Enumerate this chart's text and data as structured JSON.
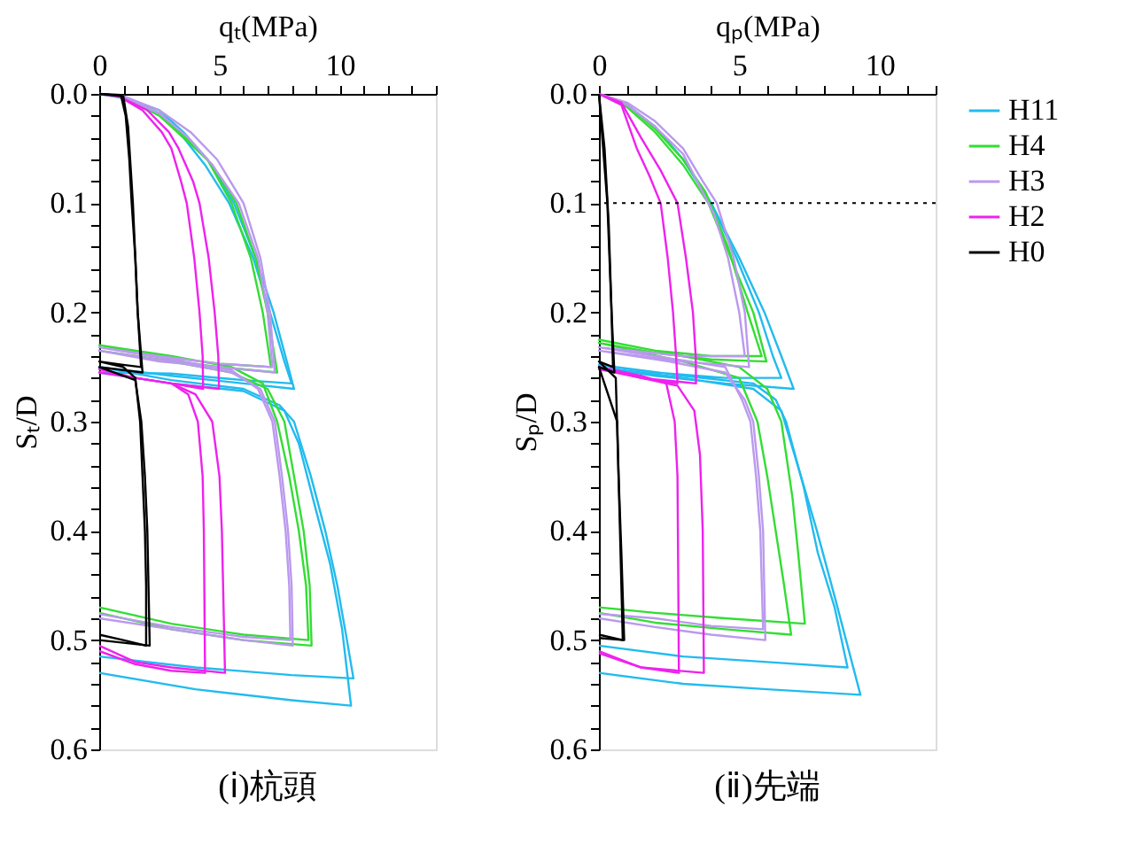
{
  "chart_data": [
    {
      "type": "line",
      "title": "(ⅰ)杭頭",
      "xlabel": "qₜ(MPa)",
      "ylabel": "Sₜ/D",
      "xlim": [
        0,
        14
      ],
      "ylim": [
        0.6,
        0
      ],
      "grid": false,
      "legend": false,
      "line_style": "solid",
      "marker": "none",
      "xticks": [
        0,
        {
          "value": 1,
          "label": null
        },
        {
          "value": 2,
          "label": null
        },
        {
          "value": 3,
          "label": null
        },
        {
          "value": 4,
          "label": null
        },
        5,
        {
          "value": 6,
          "label": null
        },
        {
          "value": 7,
          "label": null
        },
        {
          "value": 8,
          "label": null
        },
        {
          "value": 9,
          "label": null
        },
        10,
        {
          "value": 11,
          "label": null
        },
        {
          "value": 12,
          "label": null
        },
        {
          "value": 13,
          "label": null
        },
        {
          "value": 14,
          "label": null
        }
      ],
      "yticks": [
        {
          "value": 0,
          "label": "0.0"
        },
        {
          "value": 0.02,
          "label": null
        },
        {
          "value": 0.04,
          "label": null
        },
        {
          "value": 0.06,
          "label": null
        },
        {
          "value": 0.08,
          "label": null
        },
        0.1,
        {
          "value": 0.12,
          "label": null
        },
        {
          "value": 0.14,
          "label": null
        },
        {
          "value": 0.16,
          "label": null
        },
        {
          "value": 0.18,
          "label": null
        },
        0.2,
        {
          "value": 0.22,
          "label": null
        },
        {
          "value": 0.24,
          "label": null
        },
        {
          "value": 0.26,
          "label": null
        },
        {
          "value": 0.28,
          "label": null
        },
        0.3,
        {
          "value": 0.32,
          "label": null
        },
        {
          "value": 0.34,
          "label": null
        },
        {
          "value": 0.36,
          "label": null
        },
        {
          "value": 0.38,
          "label": null
        },
        0.4,
        {
          "value": 0.42,
          "label": null
        },
        {
          "value": 0.44,
          "label": null
        },
        {
          "value": 0.46,
          "label": null
        },
        {
          "value": 0.48,
          "label": null
        },
        0.5,
        {
          "value": 0.52,
          "label": null
        },
        {
          "value": 0.54,
          "label": null
        },
        {
          "value": 0.56,
          "label": null
        },
        {
          "value": 0.58,
          "label": null
        },
        0.6
      ],
      "series": [
        {
          "color": "#22bbee",
          "x": [
            0,
            1,
            2.5,
            3.5,
            4.5,
            5.6,
            6.5,
            7.25,
            7.8,
            8.1,
            6,
            3,
            0,
            3,
            6,
            7.5,
            8.1,
            8.8,
            9.4,
            9.9,
            10.3,
            10.57,
            8,
            4,
            0,
            null,
            0,
            1,
            2.5,
            3.5,
            4.4,
            5.4,
            6.4,
            7.1,
            7.7,
            8.0,
            6,
            3,
            0,
            3,
            6,
            7.7,
            8.3,
            9.0,
            9.6,
            10.1,
            10.47,
            8,
            4,
            0
          ],
          "values": [
            0,
            0.003,
            0.015,
            0.035,
            0.06,
            0.1,
            0.15,
            0.2,
            0.245,
            0.27,
            0.265,
            0.258,
            0.25,
            0.262,
            0.27,
            0.285,
            0.3,
            0.35,
            0.4,
            0.45,
            0.5,
            0.535,
            0.532,
            0.525,
            0.515,
            null,
            0,
            0.004,
            0.018,
            0.04,
            0.065,
            0.1,
            0.15,
            0.2,
            0.245,
            0.265,
            0.262,
            0.256,
            0.255,
            0.265,
            0.272,
            0.29,
            0.32,
            0.38,
            0.43,
            0.49,
            0.56,
            0.555,
            0.545,
            0.53
          ]
        },
        {
          "color": "#33dd33",
          "x": [
            0,
            1,
            2.5,
            3.5,
            4.5,
            5.5,
            6.3,
            6.8,
            7.14,
            5,
            2.5,
            0,
            3,
            5.5,
            6.8,
            7.4,
            7.9,
            8.3,
            8.6,
            8.7,
            6,
            3,
            0,
            null,
            0,
            1,
            2.5,
            3.6,
            4.7,
            5.7,
            6.5,
            7.0,
            7.4,
            5,
            2.5,
            0,
            3,
            5.5,
            7,
            7.7,
            8.1,
            8.5,
            8.75,
            8.83,
            6,
            3,
            0
          ],
          "values": [
            0,
            0.003,
            0.02,
            0.04,
            0.06,
            0.1,
            0.15,
            0.2,
            0.25,
            0.247,
            0.24,
            0.23,
            0.24,
            0.25,
            0.265,
            0.3,
            0.35,
            0.4,
            0.45,
            0.5,
            0.495,
            0.485,
            0.47,
            null,
            0,
            0.003,
            0.018,
            0.04,
            0.065,
            0.1,
            0.15,
            0.2,
            0.255,
            0.25,
            0.243,
            0.235,
            0.245,
            0.255,
            0.27,
            0.3,
            0.35,
            0.4,
            0.45,
            0.505,
            0.5,
            0.49,
            0.475
          ]
        },
        {
          "color": "#bb99ee",
          "x": [
            0,
            1,
            2.5,
            3.8,
            4.9,
            6,
            6.7,
            7.1,
            7.3,
            5,
            2.5,
            0,
            3,
            5.5,
            6.7,
            7.3,
            7.6,
            7.85,
            8.0,
            8.05,
            6,
            3,
            0,
            null,
            0,
            1,
            2.5,
            3.7,
            4.7,
            5.8,
            6.6,
            7.0,
            7.2,
            5,
            2.5,
            0,
            3,
            5.5,
            6.6,
            7.2,
            7.5,
            7.75,
            7.9,
            7.95,
            6,
            3,
            0
          ],
          "values": [
            0,
            0.002,
            0.015,
            0.035,
            0.06,
            0.1,
            0.15,
            0.2,
            0.255,
            0.25,
            0.245,
            0.235,
            0.245,
            0.255,
            0.27,
            0.3,
            0.35,
            0.4,
            0.45,
            0.505,
            0.5,
            0.49,
            0.48,
            null,
            0,
            0.003,
            0.018,
            0.04,
            0.065,
            0.1,
            0.15,
            0.2,
            0.25,
            0.247,
            0.24,
            0.232,
            0.243,
            0.253,
            0.27,
            0.3,
            0.35,
            0.4,
            0.45,
            0.5,
            0.497,
            0.488,
            0.476
          ]
        },
        {
          "color": "#ee22ee",
          "x": [
            0,
            0.8,
            1.8,
            2.6,
            3.0,
            3.4,
            3.64,
            3.95,
            4.17,
            4.3,
            4.32,
            3,
            1.5,
            0,
            1.5,
            3,
            3.7,
            4.1,
            4.3,
            4.35,
            4.4,
            3,
            1.5,
            0,
            null,
            0,
            0.8,
            2,
            2.9,
            3.3,
            3.9,
            4.17,
            4.55,
            4.8,
            4.95,
            4.98,
            3,
            1.5,
            0,
            1.5,
            3,
            4,
            4.7,
            5.0,
            5.1,
            5.23,
            3,
            1.5,
            0
          ],
          "values": [
            0,
            0.002,
            0.015,
            0.035,
            0.05,
            0.08,
            0.1,
            0.15,
            0.2,
            0.24,
            0.27,
            0.265,
            0.26,
            0.255,
            0.26,
            0.265,
            0.275,
            0.3,
            0.35,
            0.4,
            0.53,
            0.528,
            0.522,
            0.51,
            null,
            0,
            0.002,
            0.015,
            0.035,
            0.05,
            0.08,
            0.1,
            0.15,
            0.2,
            0.24,
            0.27,
            0.265,
            0.26,
            0.252,
            0.26,
            0.265,
            0.275,
            0.3,
            0.35,
            0.4,
            0.53,
            0.525,
            0.52,
            0.505
          ]
        },
        {
          "color": "#000000",
          "x": [
            0,
            0.9,
            1.1,
            1.25,
            1.35,
            1.5,
            1.6,
            1.74,
            1,
            0,
            1,
            1.5,
            1.7,
            1.8,
            1.9,
            1.95,
            1.95,
            1,
            0,
            null,
            0,
            1.0,
            1.2,
            1.4,
            1.6,
            1.8,
            0,
            1.5,
            1.75,
            1.9,
            2.0,
            2.1,
            0
          ],
          "values": [
            0,
            0.001,
            0.02,
            0.06,
            0.1,
            0.15,
            0.2,
            0.25,
            0.248,
            0.245,
            0.25,
            0.26,
            0.3,
            0.35,
            0.4,
            0.45,
            0.505,
            0.5,
            0.495,
            null,
            0,
            0.002,
            0.03,
            0.1,
            0.2,
            0.255,
            0.25,
            0.262,
            0.3,
            0.35,
            0.4,
            0.505,
            0.5
          ]
        }
      ]
    },
    {
      "type": "line",
      "title": "(ⅱ)先端",
      "xlabel": "qₚ(MPa)",
      "ylabel": "Sₚ/D",
      "xlim": [
        0,
        12
      ],
      "ylim": [
        0.6,
        0
      ],
      "grid": false,
      "legend": "right",
      "line_style": "solid",
      "marker": "none",
      "xticks": [
        0,
        {
          "value": 1,
          "label": null
        },
        {
          "value": 2,
          "label": null
        },
        {
          "value": 3,
          "label": null
        },
        {
          "value": 4,
          "label": null
        },
        5,
        {
          "value": 6,
          "label": null
        },
        {
          "value": 7,
          "label": null
        },
        {
          "value": 8,
          "label": null
        },
        {
          "value": 9,
          "label": null
        },
        10,
        {
          "value": 11,
          "label": null
        },
        {
          "value": 12,
          "label": null
        }
      ],
      "yticks": [
        {
          "value": 0,
          "label": "0.0"
        },
        {
          "value": 0.02,
          "label": null
        },
        {
          "value": 0.04,
          "label": null
        },
        {
          "value": 0.06,
          "label": null
        },
        {
          "value": 0.08,
          "label": null
        },
        0.1,
        {
          "value": 0.12,
          "label": null
        },
        {
          "value": 0.14,
          "label": null
        },
        {
          "value": 0.16,
          "label": null
        },
        {
          "value": 0.18,
          "label": null
        },
        0.2,
        {
          "value": 0.22,
          "label": null
        },
        {
          "value": 0.24,
          "label": null
        },
        {
          "value": 0.26,
          "label": null
        },
        {
          "value": 0.28,
          "label": null
        },
        0.3,
        {
          "value": 0.32,
          "label": null
        },
        {
          "value": 0.34,
          "label": null
        },
        {
          "value": 0.36,
          "label": null
        },
        {
          "value": 0.38,
          "label": null
        },
        0.4,
        {
          "value": 0.42,
          "label": null
        },
        {
          "value": 0.44,
          "label": null
        },
        {
          "value": 0.46,
          "label": null
        },
        {
          "value": 0.48,
          "label": null
        },
        0.5,
        {
          "value": 0.52,
          "label": null
        },
        {
          "value": 0.54,
          "label": null
        },
        {
          "value": 0.56,
          "label": null
        },
        {
          "value": 0.58,
          "label": null
        },
        0.6
      ],
      "ref_lines": [
        {
          "axis": "y",
          "value": 0.1,
          "color": "#000000",
          "line_style": "dotted"
        }
      ],
      "series": [
        {
          "name": "H11",
          "color": "#22bbee",
          "x": [
            0,
            1,
            2,
            3,
            4,
            5,
            5.9,
            6.5,
            6.94,
            4.5,
            2,
            0,
            3,
            5.5,
            6.5,
            7.2,
            7.77,
            8.4,
            9.32,
            6,
            3,
            0,
            null,
            0,
            1,
            2,
            3,
            4,
            4.9,
            5.7,
            6.2,
            6.5,
            4.5,
            2,
            0,
            3,
            5.5,
            6.3,
            6.67,
            7.3,
            7.8,
            8.4,
            8.86,
            6,
            3,
            0
          ],
          "values": [
            0,
            0.01,
            0.03,
            0.06,
            0.1,
            0.15,
            0.2,
            0.24,
            0.27,
            0.265,
            0.258,
            0.25,
            0.26,
            0.27,
            0.29,
            0.35,
            0.4,
            0.46,
            0.55,
            0.545,
            0.54,
            0.53,
            null,
            0,
            0.01,
            0.03,
            0.06,
            0.1,
            0.15,
            0.2,
            0.24,
            0.26,
            0.26,
            0.255,
            0.248,
            0.258,
            0.265,
            0.28,
            0.3,
            0.36,
            0.42,
            0.47,
            0.525,
            0.52,
            0.515,
            0.505
          ]
        },
        {
          "name": "H4",
          "color": "#33dd33",
          "x": [
            0,
            1,
            2,
            3,
            3.9,
            4.7,
            5.5,
            5.97,
            4,
            2,
            0,
            3,
            5,
            5.65,
            6.0,
            6.3,
            6.6,
            6.85,
            4.5,
            2,
            0,
            null,
            0,
            1,
            2,
            3,
            3.8,
            4.6,
            5.3,
            5.8,
            4,
            2,
            0,
            3,
            5,
            6,
            6.5,
            6.9,
            7.1,
            7.34,
            4.5,
            2,
            0
          ],
          "values": [
            0,
            0.012,
            0.035,
            0.065,
            0.1,
            0.15,
            0.2,
            0.245,
            0.243,
            0.237,
            0.228,
            0.245,
            0.26,
            0.3,
            0.35,
            0.4,
            0.45,
            0.495,
            0.49,
            0.484,
            0.475,
            null,
            0,
            0.01,
            0.032,
            0.06,
            0.09,
            0.14,
            0.2,
            0.24,
            0.24,
            0.235,
            0.225,
            0.24,
            0.25,
            0.27,
            0.3,
            0.37,
            0.42,
            0.485,
            0.48,
            0.475,
            0.47
          ]
        },
        {
          "name": "H3",
          "color": "#bb99ee",
          "x": [
            0,
            1,
            2,
            3,
            3.7,
            4.2,
            4.8,
            5.2,
            5.35,
            3,
            1.5,
            0,
            2.5,
            4.5,
            5.2,
            5.5,
            5.7,
            5.85,
            5.93,
            4,
            2,
            0,
            null,
            0,
            1,
            2,
            3,
            3.6,
            4.1,
            4.6,
            5.0,
            5.2,
            3,
            1.5,
            0,
            2.5,
            4.5,
            5.1,
            5.4,
            5.6,
            5.75,
            5.85,
            4,
            2,
            0
          ],
          "values": [
            0,
            0.008,
            0.025,
            0.05,
            0.08,
            0.1,
            0.15,
            0.2,
            0.25,
            0.245,
            0.24,
            0.235,
            0.245,
            0.255,
            0.28,
            0.3,
            0.35,
            0.4,
            0.5,
            0.495,
            0.488,
            0.48,
            null,
            0,
            0.01,
            0.03,
            0.055,
            0.085,
            0.11,
            0.15,
            0.2,
            0.24,
            0.24,
            0.236,
            0.232,
            0.242,
            0.25,
            0.28,
            0.3,
            0.35,
            0.4,
            0.49,
            0.487,
            0.48,
            0.476
          ]
        },
        {
          "name": "H2",
          "color": "#ee22ee",
          "x": [
            0,
            0.8,
            1.35,
            1.8,
            2.2,
            2.45,
            2.64,
            2.75,
            2.8,
            1.5,
            0,
            1.5,
            2.4,
            2.7,
            2.8,
            2.85,
            1.5,
            0,
            null,
            0,
            0.8,
            1.5,
            2.2,
            2.8,
            3.1,
            3.35,
            3.45,
            3.46,
            1.5,
            0,
            1.5,
            2.8,
            3.4,
            3.6,
            3.7,
            3.74,
            1.5,
            0
          ],
          "values": [
            0,
            0.01,
            0.05,
            0.075,
            0.1,
            0.15,
            0.2,
            0.24,
            0.265,
            0.26,
            0.25,
            0.258,
            0.265,
            0.3,
            0.35,
            0.53,
            0.525,
            0.51,
            null,
            0,
            0.008,
            0.04,
            0.07,
            0.1,
            0.15,
            0.2,
            0.24,
            0.265,
            0.26,
            0.252,
            0.26,
            0.267,
            0.29,
            0.33,
            0.4,
            0.53,
            0.525,
            0.512
          ]
        },
        {
          "name": "H0",
          "color": "#000000",
          "x": [
            0,
            0.2,
            0.35,
            0.45,
            0.5,
            0,
            0.6,
            0.7,
            0.8,
            0.9,
            0,
            null,
            0,
            0.3,
            0.45,
            0.55,
            0,
            0.65,
            0.75,
            0.85,
            0
          ],
          "values": [
            0,
            0.05,
            0.12,
            0.2,
            0.25,
            0.245,
            0.26,
            0.35,
            0.42,
            0.5,
            0.498,
            null,
            0,
            0.1,
            0.2,
            0.255,
            0.25,
            0.3,
            0.4,
            0.5,
            0.495
          ]
        }
      ]
    }
  ]
}
